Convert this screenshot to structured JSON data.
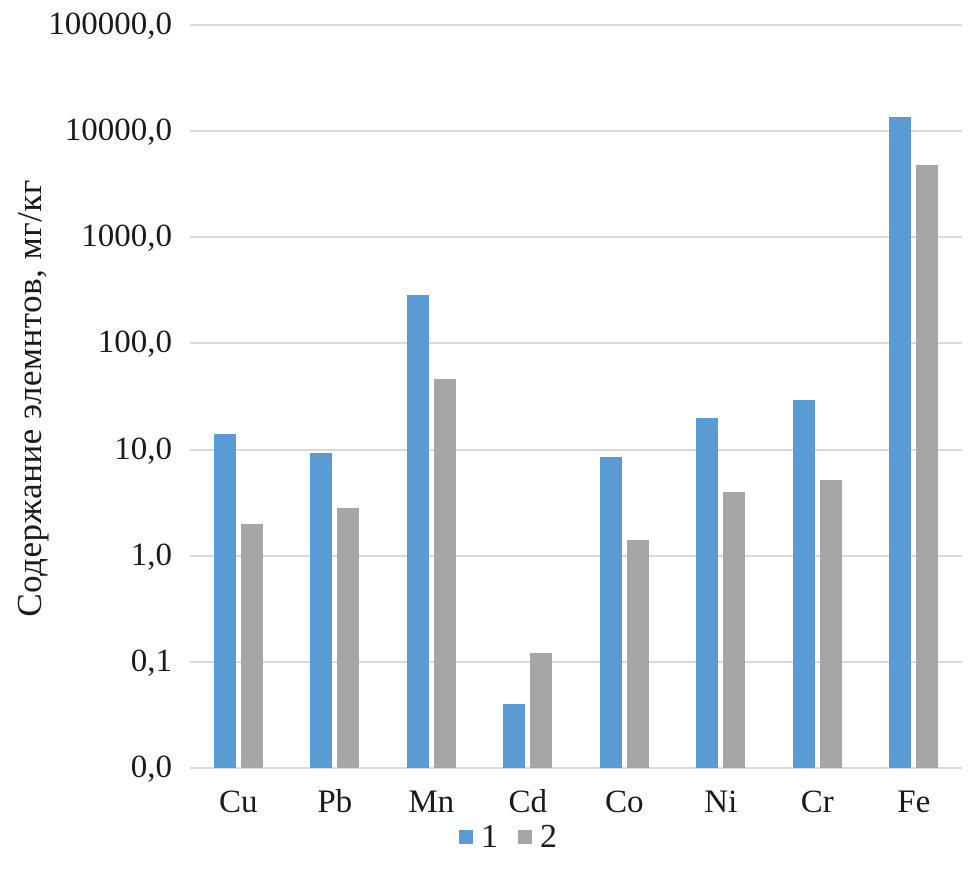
{
  "chart_data": {
    "type": "bar",
    "title": "",
    "ylabel": "Содержание элемнтов, мг/кг",
    "xlabel": "",
    "yscale": "log",
    "ylim": [
      0.01,
      100000
    ],
    "grid": true,
    "gridline_color": "#d9d9d9",
    "background_color": "#ffffff",
    "legend_position": "bottom",
    "categories": [
      "Cu",
      "Pb",
      "Mn",
      "Cd",
      "Co",
      "Ni",
      "Cr",
      "Fe"
    ],
    "series": [
      {
        "name": "1",
        "color": "#5b9bd5",
        "values": [
          14,
          9.2,
          285,
          0.04,
          8.5,
          20,
          29,
          13500
        ]
      },
      {
        "name": "2",
        "color": "#a6a6a6",
        "values": [
          2.0,
          2.8,
          46,
          0.12,
          1.4,
          4.0,
          5.2,
          4800
        ]
      }
    ],
    "yticks": [
      {
        "value": 100000,
        "label": "100000,0"
      },
      {
        "value": 10000,
        "label": "10000,0"
      },
      {
        "value": 1000,
        "label": "1000,0"
      },
      {
        "value": 100,
        "label": "100,0"
      },
      {
        "value": 10,
        "label": "10,0"
      },
      {
        "value": 1,
        "label": "1,0"
      },
      {
        "value": 0.1,
        "label": "0,1"
      },
      {
        "value": 0.01,
        "label": "0,0"
      }
    ]
  }
}
